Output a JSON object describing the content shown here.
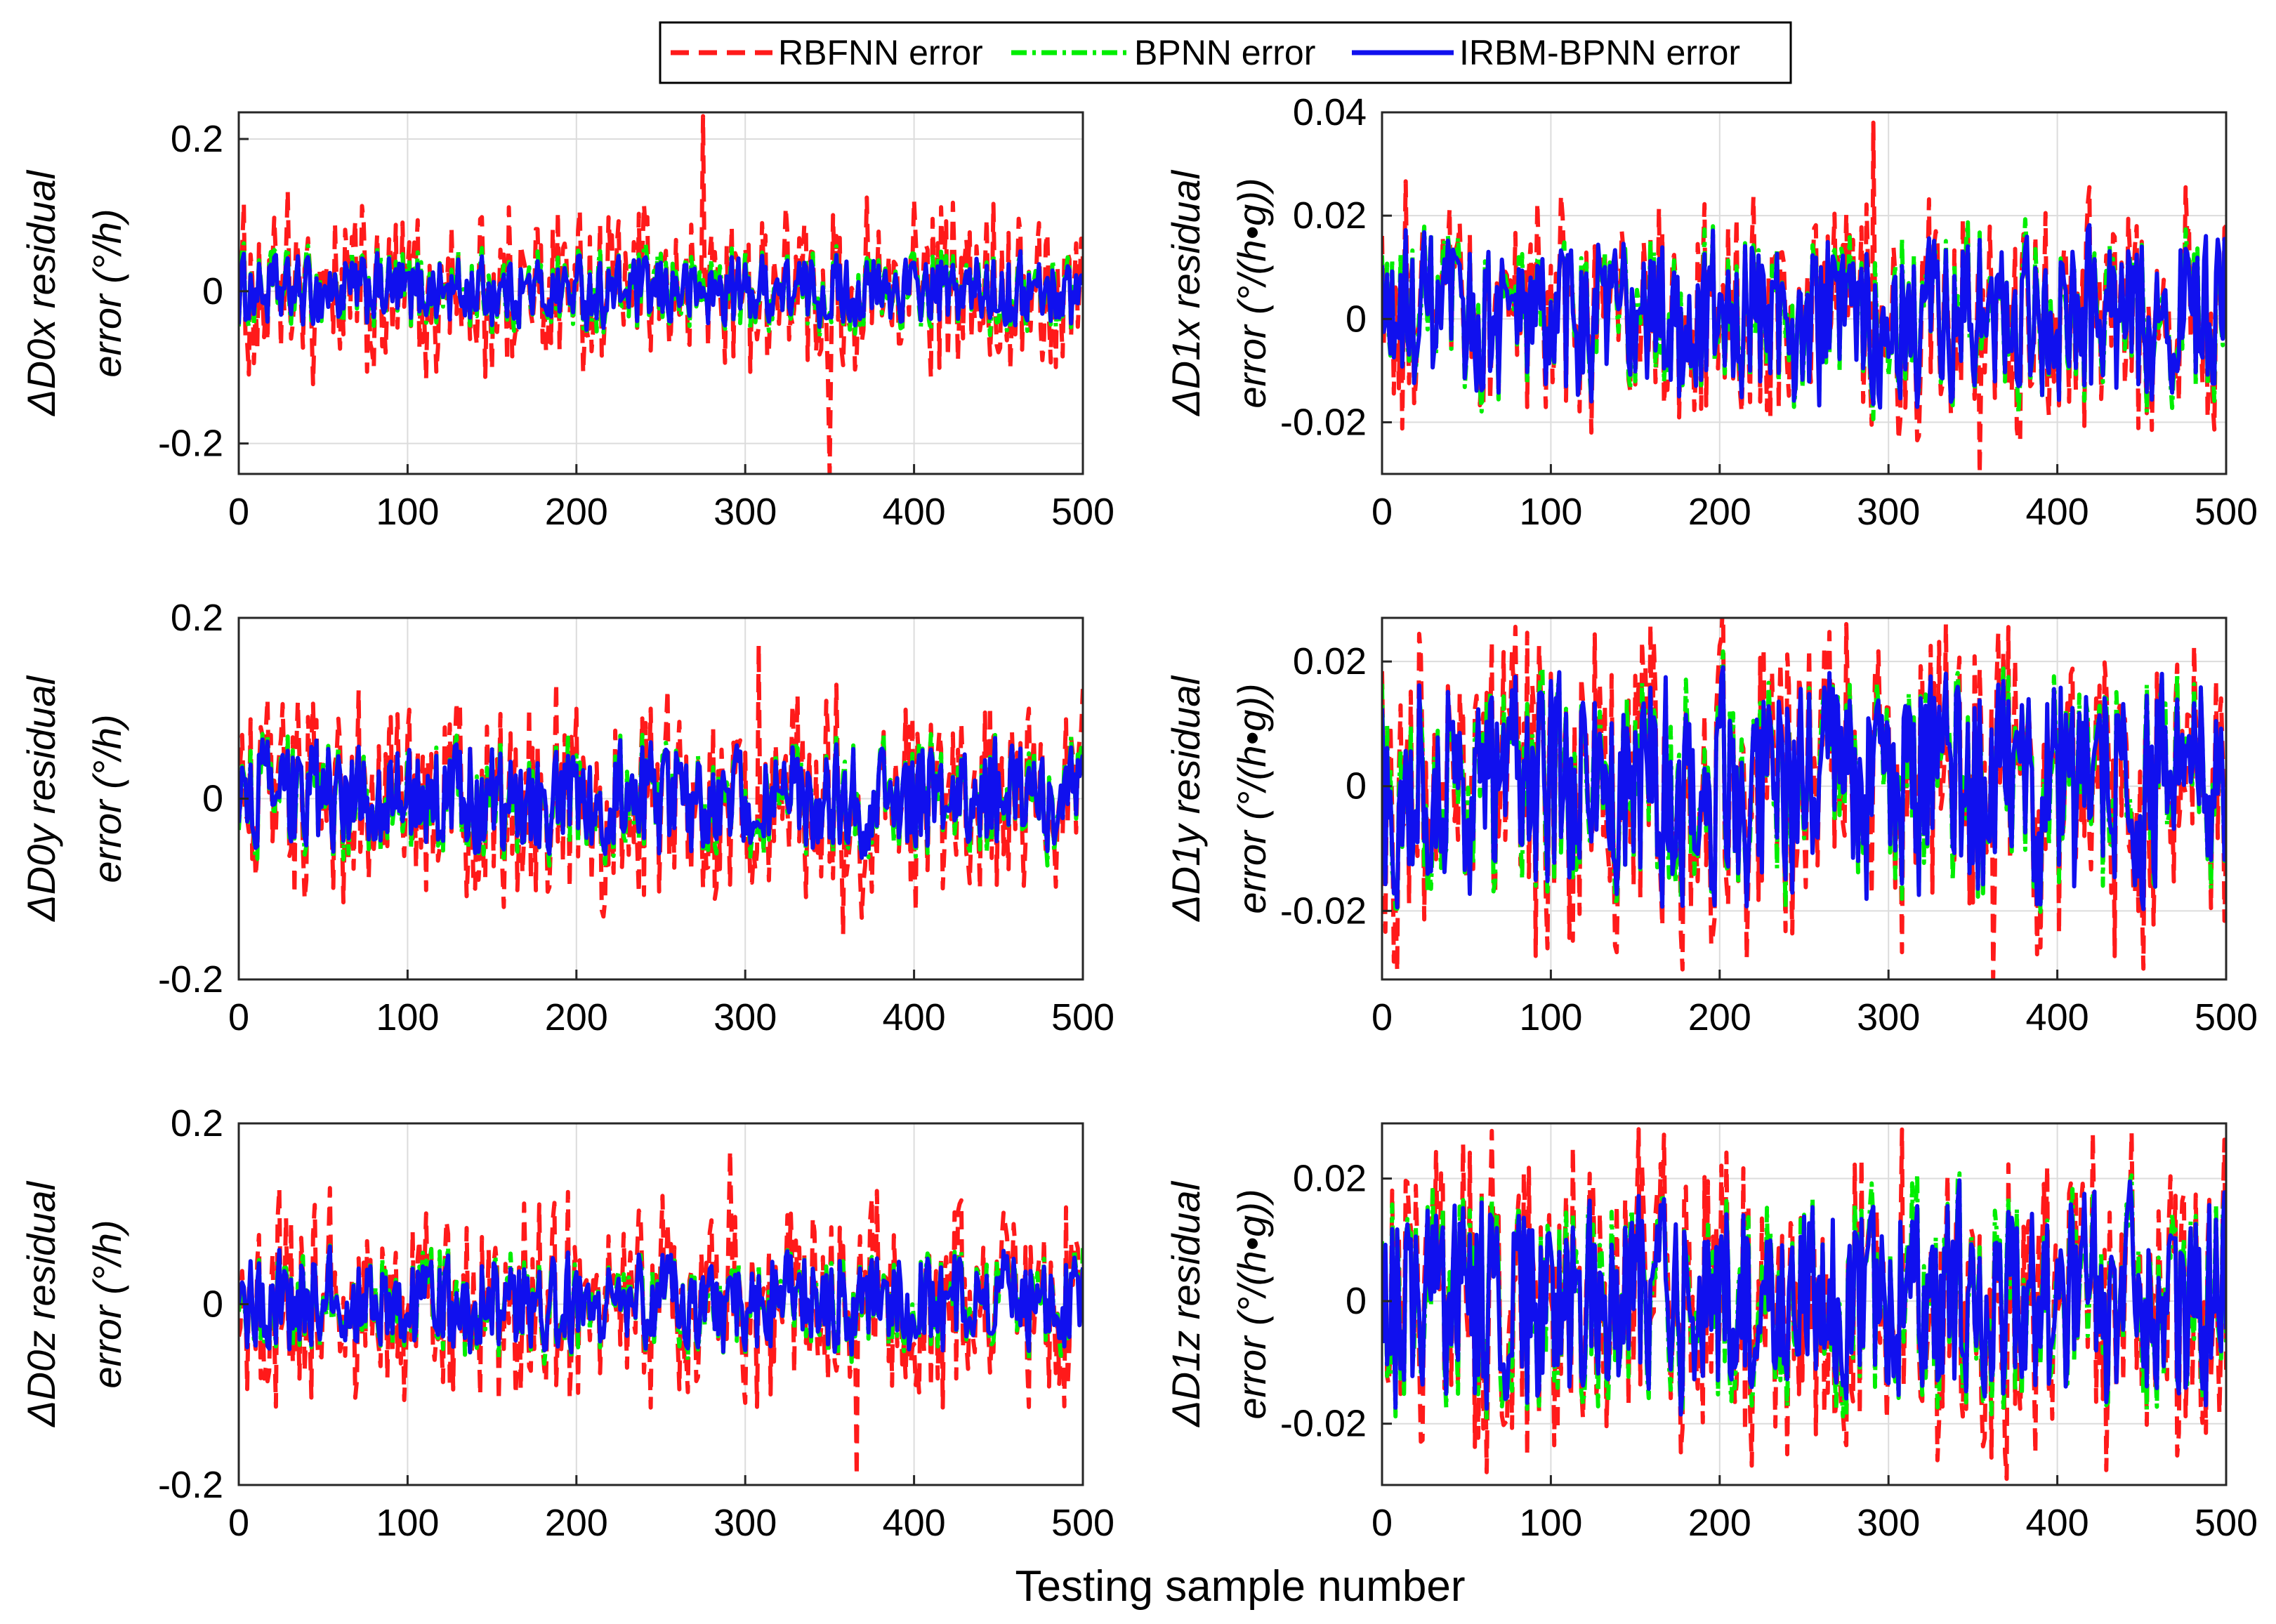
{
  "chart_data": {
    "type": "line",
    "layout": "3x2 subplot grid",
    "xlabel": "Testing sample number",
    "legend": {
      "placement": "top-center",
      "entries": [
        {
          "name": "RBFNN error",
          "color": "#ff1a1a",
          "style": "dashed"
        },
        {
          "name": "BPNN error",
          "color": "#00ee00",
          "style": "dash-dot"
        },
        {
          "name": "IRBM-BPNN error",
          "color": "#1010ee",
          "style": "solid"
        }
      ]
    },
    "grid": true,
    "n_samples": 500,
    "panels": [
      {
        "id": "d0x",
        "ylabel_line1": "ΔD0x residual",
        "ylabel_line2": "error (°/h)",
        "xlim": [
          0,
          500
        ],
        "ylim": [
          -0.24,
          0.235
        ],
        "xticks": [
          0,
          100,
          200,
          300,
          400,
          500
        ],
        "xtick_labels": [
          "0",
          "100",
          "200",
          "300",
          "400",
          "500"
        ],
        "yticks": [
          -0.2,
          0,
          0.2
        ],
        "ytick_labels": [
          "-0.2",
          "0",
          "0.2"
        ],
        "series_amplitude": {
          "RBFNN error": 0.1,
          "BPNN error": 0.06,
          "IRBM-BPNN error": 0.05
        },
        "series_extremes": {
          "RBFNN error": {
            "max": 0.23,
            "min": -0.24
          }
        }
      },
      {
        "id": "d1x",
        "ylabel_line1": "ΔD1x residual",
        "ylabel_line2": "error (°/(h•g))",
        "xlim": [
          0,
          500
        ],
        "ylim": [
          -0.03,
          0.04
        ],
        "xticks": [
          0,
          100,
          200,
          300,
          400,
          500
        ],
        "xtick_labels": [
          "0",
          "100",
          "200",
          "300",
          "400",
          "500"
        ],
        "yticks": [
          -0.02,
          0,
          0.02,
          0.04
        ],
        "ytick_labels": [
          "-0.02",
          "0",
          "0.02",
          "0.04"
        ],
        "series_amplitude": {
          "RBFNN error": 0.02,
          "BPNN error": 0.018,
          "IRBM-BPNN error": 0.017
        },
        "series_extremes": {
          "RBFNN error": {
            "max": 0.038,
            "min": -0.03
          }
        }
      },
      {
        "id": "d0y",
        "ylabel_line1": "ΔD0y residual",
        "ylabel_line2": "error (°/h)",
        "xlim": [
          0,
          500
        ],
        "ylim": [
          -0.2,
          0.2
        ],
        "xticks": [
          0,
          100,
          200,
          300,
          400,
          500
        ],
        "xtick_labels": [
          "0",
          "100",
          "200",
          "300",
          "400",
          "500"
        ],
        "yticks": [
          -0.2,
          0,
          0.2
        ],
        "ytick_labels": [
          "-0.2",
          "0",
          "0.2"
        ],
        "series_amplitude": {
          "RBFNN error": 0.1,
          "BPNN error": 0.07,
          "IRBM-BPNN error": 0.065
        },
        "series_extremes": {
          "RBFNN error": {
            "max": 0.17,
            "min": -0.15
          }
        }
      },
      {
        "id": "d1y",
        "ylabel_line1": "ΔD1y residual",
        "ylabel_line2": "error (°/(h•g))",
        "xlim": [
          0,
          500
        ],
        "ylim": [
          -0.031,
          0.027
        ],
        "xticks": [
          0,
          100,
          200,
          300,
          400,
          500
        ],
        "xtick_labels": [
          "0",
          "100",
          "200",
          "300",
          "400",
          "500"
        ],
        "yticks": [
          -0.02,
          0,
          0.02
        ],
        "ytick_labels": [
          "-0.02",
          "0",
          "0.02"
        ],
        "series_amplitude": {
          "RBFNN error": 0.022,
          "BPNN error": 0.02,
          "IRBM-BPNN error": 0.019
        },
        "series_extremes": {
          "RBFNN error": {
            "max": 0.026,
            "min": -0.031
          }
        }
      },
      {
        "id": "d0z",
        "ylabel_line1": "ΔD0z residual",
        "ylabel_line2": "error (°/h)",
        "xlim": [
          0,
          500
        ],
        "ylim": [
          -0.2,
          0.2
        ],
        "xticks": [
          0,
          100,
          200,
          300,
          400,
          500
        ],
        "xtick_labels": [
          "0",
          "100",
          "200",
          "300",
          "400",
          "500"
        ],
        "yticks": [
          -0.2,
          0,
          0.2
        ],
        "ytick_labels": [
          "-0.2",
          "0",
          "0.2"
        ],
        "series_amplitude": {
          "RBFNN error": 0.1,
          "BPNN error": 0.065,
          "IRBM-BPNN error": 0.06
        },
        "series_extremes": {
          "RBFNN error": {
            "max": 0.17,
            "min": -0.19
          }
        }
      },
      {
        "id": "d1z",
        "ylabel_line1": "ΔD1z residual",
        "ylabel_line2": "error (°/(h•g))",
        "xlim": [
          0,
          500
        ],
        "ylim": [
          -0.03,
          0.029
        ],
        "xticks": [
          0,
          100,
          200,
          300,
          400,
          500
        ],
        "xtick_labels": [
          "0",
          "100",
          "200",
          "300",
          "400",
          "500"
        ],
        "yticks": [
          -0.02,
          0,
          0.02
        ],
        "ytick_labels": [
          "-0.02",
          "0",
          "0.02"
        ],
        "series_amplitude": {
          "RBFNN error": 0.022,
          "BPNN error": 0.02,
          "IRBM-BPNN error": 0.018
        },
        "series_extremes": {
          "RBFNN error": {
            "max": 0.028,
            "min": -0.029
          }
        }
      }
    ]
  }
}
